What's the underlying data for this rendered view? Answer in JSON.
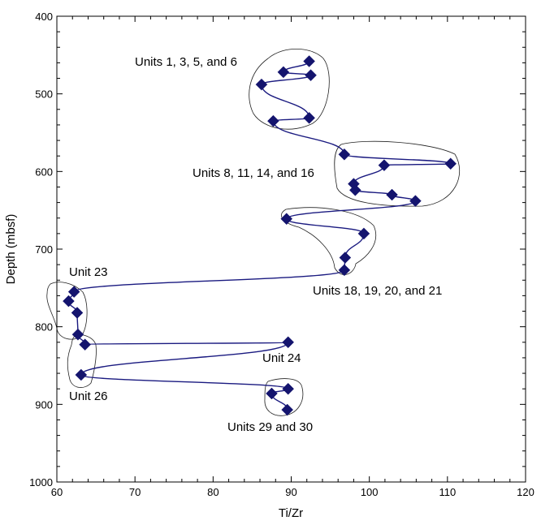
{
  "chart_data": {
    "type": "line",
    "xlabel": "Ti/Zr",
    "ylabel": "Depth (mbsf)",
    "xlim": [
      60,
      120
    ],
    "ylim": [
      400,
      1000
    ],
    "y_inverted": true,
    "x_ticks": [
      60,
      70,
      80,
      90,
      100,
      110,
      120
    ],
    "y_ticks": [
      400,
      500,
      600,
      700,
      800,
      900,
      1000
    ],
    "line_color": "#1a1a80",
    "marker_color": "#14146e",
    "marker": "diamond",
    "series": [
      {
        "x": [
          92.3,
          89.0,
          92.5,
          86.2,
          92.3,
          87.7,
          96.8,
          110.4,
          101.9,
          98.0,
          98.2,
          102.9,
          105.9,
          89.4,
          99.3,
          96.9,
          96.8,
          62.2,
          61.5,
          62.6,
          62.7,
          63.6,
          89.6,
          63.1,
          89.6,
          87.5,
          89.5
        ],
        "y": [
          458,
          472,
          476,
          488,
          531,
          535,
          578,
          590,
          592,
          616,
          624,
          630,
          638,
          661,
          680,
          711,
          727,
          755,
          767,
          782,
          810,
          823,
          820,
          862,
          880,
          886,
          907
        ]
      }
    ],
    "groups": [
      {
        "label": "Units 1, 3, 5, and 6"
      },
      {
        "label": "Units 8, 11, 14, and 16"
      },
      {
        "label": "Units 18, 19, 20, and 21"
      },
      {
        "label": "Unit 23"
      },
      {
        "label": "Unit 24"
      },
      {
        "label": "Unit 26"
      },
      {
        "label": "Units 29 and 30"
      }
    ]
  }
}
